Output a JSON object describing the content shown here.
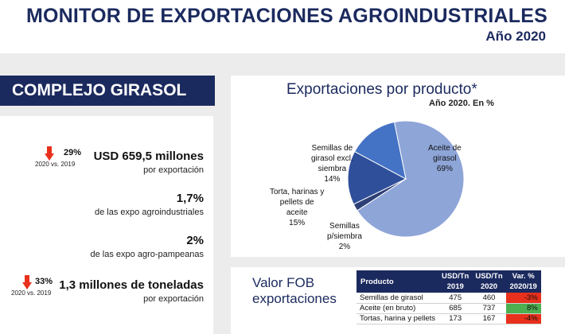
{
  "header": {
    "title": "MONITOR DE EXPORTACIONES AGROINDUSTRIALES",
    "year": "Año 2020"
  },
  "complex": {
    "title": "COMPLEJO GIRASOL"
  },
  "stats": [
    {
      "value": "USD 659,5 millones",
      "label": "por exportación",
      "delta_pct": "29%",
      "delta_direction": "down",
      "delta_compare": "2020 vs. 2019"
    },
    {
      "value": "1,7%",
      "label": "de las expo agroindustriales"
    },
    {
      "value": "2%",
      "label": "de las expo agro-pampeanas"
    },
    {
      "value": "1,3 millones de toneladas",
      "label": "por exportación",
      "delta_pct": "33%",
      "delta_direction": "down",
      "delta_compare": "2020 vs. 2019"
    }
  ],
  "chart_data": {
    "type": "pie",
    "title": "Exportaciones por producto*",
    "subtitle": "Año 2020. En %",
    "slices": [
      {
        "label": "Aceite de girasol",
        "value": 69,
        "display": "69%",
        "color": "#8ea5d8"
      },
      {
        "label": "Semillas p/siembra",
        "value": 2,
        "display": "2%",
        "color": "#2d4076"
      },
      {
        "label": "Torta, harinas y pellets de aceite",
        "value": 15,
        "display": "15%",
        "color": "#2f4f9a"
      },
      {
        "label": "Semillas de girasol excl. siembra",
        "value": 14,
        "display": "14%",
        "color": "#4472c4"
      }
    ],
    "label_lines": {
      "aceite": [
        "Aceite de",
        "girasol",
        "69%"
      ],
      "siembra": [
        "Semillas",
        "p/siembra",
        "2%"
      ],
      "torta": [
        "Torta, harinas y",
        "pellets de",
        "aceite",
        "15%"
      ],
      "semillas": [
        "Semillas de",
        "girasol excl.",
        "siembra",
        "14%"
      ]
    }
  },
  "fob": {
    "title_line1": "Valor FOB",
    "title_line2": "exportaciones",
    "headers": {
      "product": "Producto",
      "usd19_1": "USD/Tn",
      "usd19_2": "2019",
      "usd20_1": "USD/Tn",
      "usd20_2": "2020",
      "var_1": "Var. %",
      "var_2": "2020/19"
    },
    "rows": [
      {
        "product": "Semillas de girasol",
        "usd2019": "475",
        "usd2020": "460",
        "var": "-3%",
        "var_color": "#e8301c"
      },
      {
        "product": "Aceite (en bruto)",
        "usd2019": "685",
        "usd2020": "737",
        "var": "8%",
        "var_color": "#4caf50"
      },
      {
        "product": "Tortas, harina y pellets",
        "usd2019": "173",
        "usd2020": "167",
        "var": "-4%",
        "var_color": "#e8301c"
      }
    ]
  },
  "colors": {
    "navy": "#1b2a5e",
    "down_arrow": "#e8301c"
  }
}
